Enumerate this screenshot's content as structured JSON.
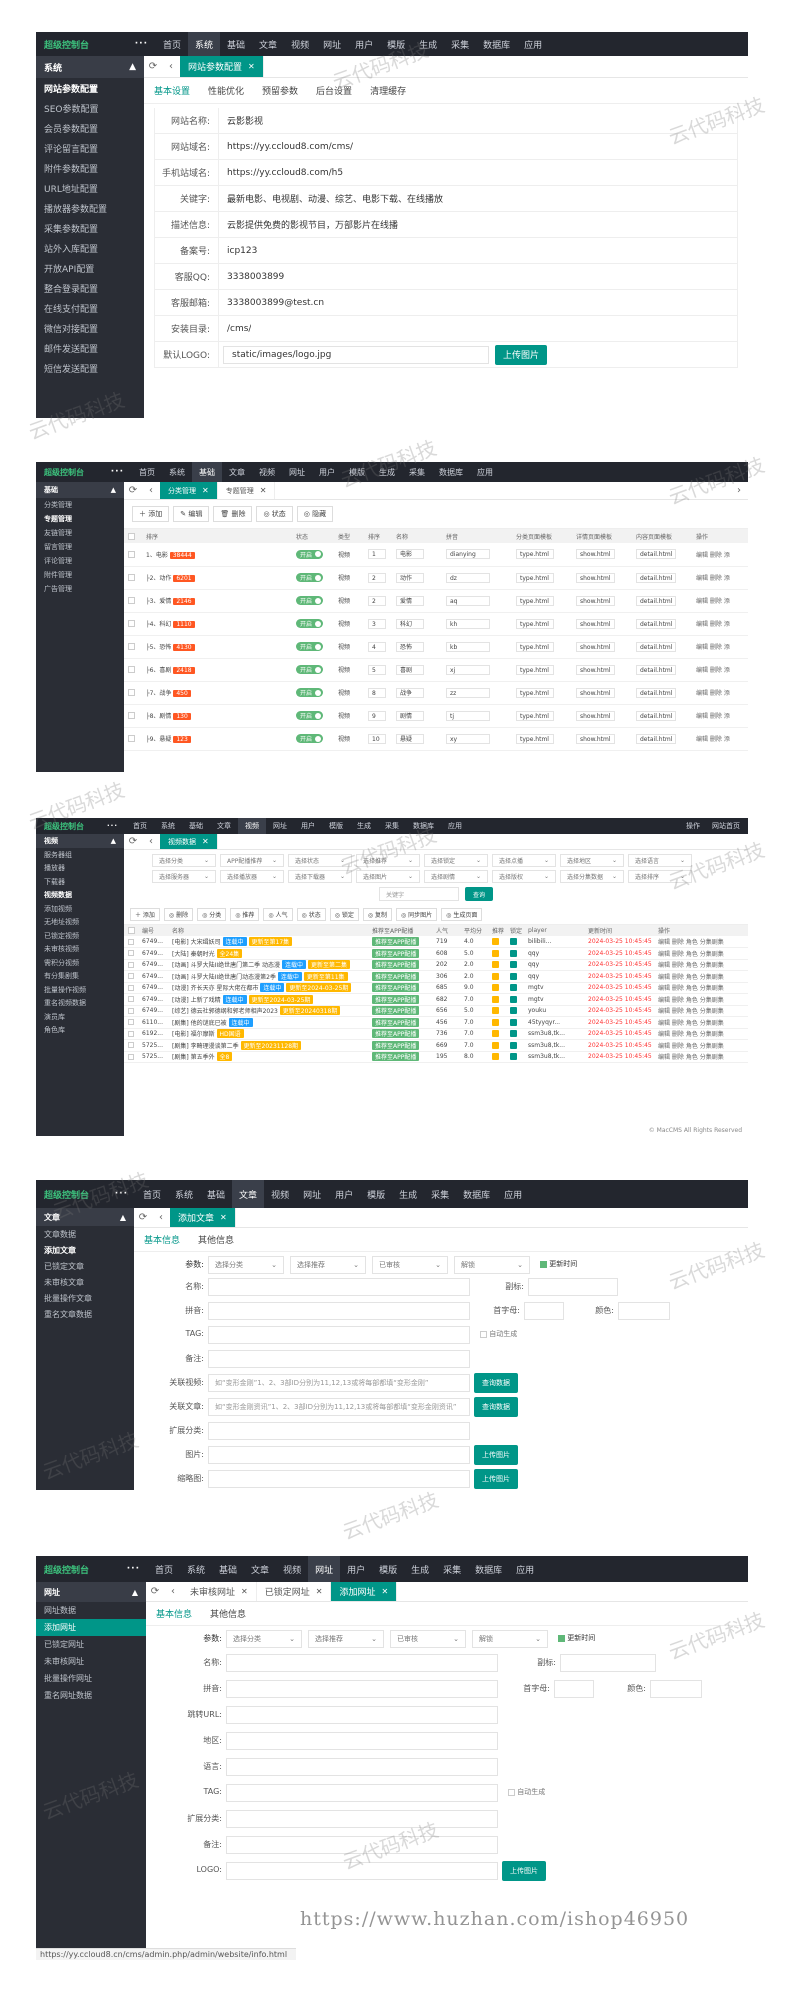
{
  "s1": {
    "brand": "超级控制台",
    "nav": [
      "首页",
      "系统",
      "基础",
      "文章",
      "视频",
      "网址",
      "用户",
      "模版",
      "生成",
      "采集",
      "数据库",
      "应用"
    ],
    "active_nav": 1,
    "side_head": "系统",
    "side_items": [
      "网站参数配置",
      "SEO参数配置",
      "会员参数配置",
      "评论留言配置",
      "附件参数配置",
      "URL地址配置",
      "播放器参数配置",
      "采集参数配置",
      "站外入库配置",
      "开放API配置",
      "整合登录配置",
      "在线支付配置",
      "微信对接配置",
      "邮件发送配置",
      "短信发送配置"
    ],
    "tab": "网站参数配置",
    "subtabs": [
      "基本设置",
      "性能优化",
      "预留参数",
      "后台设置",
      "清理缓存"
    ],
    "rows": [
      {
        "label": "网站名称:",
        "value": "云影影视"
      },
      {
        "label": "网站域名:",
        "value": "https://yy.ccloud8.com/cms/"
      },
      {
        "label": "手机站域名:",
        "value": "https://yy.ccloud8.com/h5"
      },
      {
        "label": "关键字:",
        "value": "最新电影、电视剧、动漫、综艺、电影下载、在线播放"
      },
      {
        "label": "描述信息:",
        "value": "云影提供免费的影视节目，万部影片在线播"
      },
      {
        "label": "备案号:",
        "value": "icp123"
      },
      {
        "label": "客服QQ:",
        "value": "3338003899"
      },
      {
        "label": "客服邮箱:",
        "value": "3338003899@test.cn"
      },
      {
        "label": "安装目录:",
        "value": "/cms/"
      },
      {
        "label": "默认LOGO:",
        "value": "static/images/logo.jpg"
      }
    ],
    "upload": "上传图片"
  },
  "s2": {
    "brand": "超级控制台",
    "nav": [
      "首页",
      "系统",
      "基础",
      "文章",
      "视频",
      "网址",
      "用户",
      "模版",
      "生成",
      "采集",
      "数据库",
      "应用"
    ],
    "active_nav": 2,
    "side_head": "基础",
    "side_items": [
      "分类管理",
      "专题管理",
      "友链管理",
      "留言管理",
      "评论管理",
      "附件管理",
      "广告管理"
    ],
    "tabs": [
      "分类管理",
      "专题管理"
    ],
    "toolbar": [
      "添加",
      "编辑",
      "删除",
      "状态",
      "隐藏"
    ],
    "headers": [
      "",
      "排序",
      "",
      "状态",
      "类型",
      "排序",
      "名称",
      "拼音",
      "分类页面模板",
      "详情页面模板",
      "内容页面模板",
      "操作"
    ],
    "rows": [
      {
        "name": "电影",
        "id": "38444",
        "order": "1",
        "cname": "电影",
        "py": "dianying"
      },
      {
        "name": "动作",
        "id": "6201",
        "order": "2",
        "cname": "动作",
        "py": "dz"
      },
      {
        "name": "爱情",
        "id": "2146",
        "order": "2",
        "cname": "爱情",
        "py": "aq"
      },
      {
        "name": "科幻",
        "id": "1110",
        "order": "3",
        "cname": "科幻",
        "py": "kh"
      },
      {
        "name": "恐怖",
        "id": "4130",
        "order": "4",
        "cname": "恐怖",
        "py": "kb"
      },
      {
        "name": "喜剧",
        "id": "2418",
        "order": "5",
        "cname": "喜剧",
        "py": "xj"
      },
      {
        "name": "战争",
        "id": "450",
        "order": "8",
        "cname": "战争",
        "py": "zz"
      },
      {
        "name": "剧情",
        "id": "130",
        "order": "9",
        "cname": "剧情",
        "py": "tj"
      },
      {
        "name": "悬疑",
        "id": "123",
        "order": "10",
        "cname": "悬疑",
        "py": "xy"
      }
    ],
    "status_on": "开启",
    "type_label": "视频",
    "tpl_type": "type.html",
    "tpl_show": "show.html",
    "tpl_detail": "detail.html",
    "ops": [
      "编辑",
      "删除",
      "添"
    ]
  },
  "s3": {
    "brand": "超级控制台",
    "nav": [
      "首页",
      "系统",
      "基础",
      "文章",
      "视频",
      "网址",
      "用户",
      "模版",
      "生成",
      "采集",
      "数据库",
      "应用"
    ],
    "active_nav": 4,
    "topright": [
      "操作",
      "网站首页"
    ],
    "side_head": "视频",
    "side_items": [
      "服务器组",
      "播放器",
      "下载器",
      "视频数据",
      "添加视频",
      "无地址视频",
      "已锁定视频",
      "未审核视频",
      "需积分视频",
      "有分集剧集",
      "批量操作视频",
      "重名视频数据",
      "演员库",
      "角色库"
    ],
    "tab": "视频数据",
    "filters1": [
      "选择分类",
      "APP配播推荐",
      "选择状态",
      "选择推荐",
      "选择锁定",
      "选择点播",
      "选择地区",
      "选择语言"
    ],
    "filters2": [
      "选择服务器",
      "选择播放器",
      "选择下载器",
      "选择图片",
      "选择剧情",
      "选择版权",
      "选择分集数据",
      "选择排序"
    ],
    "search_placeholder": "关键字",
    "query": "查询",
    "toolbar": [
      "添加",
      "删除",
      "分类",
      "推荐",
      "人气",
      "状态",
      "锁定",
      "复制",
      "同步图片",
      "生成页面"
    ],
    "headers": [
      "",
      "编号",
      "名称",
      "推荐至APP配播",
      "人气",
      "平均分",
      "推荐",
      "锁定",
      "player",
      "更新时间",
      "操作"
    ],
    "rows": [
      {
        "id": "6749...",
        "name": "[电影] 大宋缉妖司",
        "chips": [
          [
            "blue",
            "连载中"
          ],
          [
            "yellow",
            "更新至第17集"
          ]
        ],
        "hits": "719",
        "score": "4.0",
        "player": "bilibili...",
        "time": "2024-03-25 10:45:45"
      },
      {
        "id": "6749...",
        "name": "[大陆] 秦朝时光",
        "chips": [
          [
            "yellow",
            "全24集"
          ]
        ],
        "hits": "608",
        "score": "5.0",
        "player": "qqy",
        "time": "2024-03-25 10:45:45"
      },
      {
        "id": "6749...",
        "name": "[动画] 斗罗大陆II绝世唐门第二季 动态漫",
        "chips": [
          [
            "blue",
            "连载中"
          ],
          [
            "yellow",
            "更新至第二集"
          ]
        ],
        "hits": "202",
        "score": "2.0",
        "player": "qqy",
        "time": "2024-03-25 10:45:45"
      },
      {
        "id": "6749...",
        "name": "[动画] 斗罗大陆II绝世唐门动态漫第2季",
        "chips": [
          [
            "blue",
            "连载中"
          ],
          [
            "yellow",
            "更新至第11集"
          ]
        ],
        "hits": "306",
        "score": "2.0",
        "player": "qqy",
        "time": "2024-03-25 10:45:45"
      },
      {
        "id": "6749...",
        "name": "[动漫] 齐长天亦 星际大佬在都市",
        "chips": [
          [
            "blue",
            "连载中"
          ],
          [
            "yellow",
            "更新至2024-03-25期"
          ]
        ],
        "hits": "685",
        "score": "9.0",
        "player": "mgtv",
        "time": "2024-03-25 10:45:45"
      },
      {
        "id": "6749...",
        "name": "[动漫] 上新了戏精",
        "chips": [
          [
            "blue",
            "连载中"
          ],
          [
            "yellow",
            "更新至2024-03-25期"
          ]
        ],
        "hits": "682",
        "score": "7.0",
        "player": "mgtv",
        "time": "2024-03-25 10:45:45"
      },
      {
        "id": "6749...",
        "name": "[综艺] 德云社郭德纲和郭老师相声2023",
        "chips": [
          [
            "yellow",
            "更新至20240318期"
          ]
        ],
        "hits": "656",
        "score": "5.0",
        "player": "youku",
        "time": "2024-03-25 10:45:45"
      },
      {
        "id": "6110...",
        "name": "[剧集] 他的谜底已被",
        "chips": [
          [
            "blue",
            "连载中"
          ]
        ],
        "hits": "456",
        "score": "7.0",
        "player": "45tyyqyr...",
        "time": "2024-03-25 10:45:45"
      },
      {
        "id": "6192...",
        "name": "[电影] 福尔摩斯",
        "chips": [
          [
            "yellow",
            "HD国语"
          ]
        ],
        "hits": "736",
        "score": "7.0",
        "player": "ssm3u8,tk...",
        "time": "2024-03-25 10:45:45"
      },
      {
        "id": "5725...",
        "name": "[剧集] 李畸理漫谈第二季",
        "chips": [
          [
            "yellow",
            "更新至20231128期"
          ]
        ],
        "hits": "669",
        "score": "7.0",
        "player": "ssm3u8,tk...",
        "time": "2024-03-25 10:45:45"
      },
      {
        "id": "5725...",
        "name": "[剧集] 第五季外",
        "chips": [
          [
            "yellow",
            "全8"
          ]
        ],
        "hits": "195",
        "score": "8.0",
        "player": "ssm3u8,tk...",
        "time": "2024-03-25 10:45:45"
      }
    ],
    "app_rec": "推荐至APP配播",
    "ops": [
      "编辑",
      "删除",
      "角色",
      "分集剧集"
    ],
    "footer": "© MacCMS All Rights Reserved"
  },
  "s4": {
    "brand": "超级控制台",
    "nav": [
      "首页",
      "系统",
      "基础",
      "文章",
      "视频",
      "网址",
      "用户",
      "模版",
      "生成",
      "采集",
      "数据库",
      "应用"
    ],
    "active_nav": 3,
    "side_head": "文章",
    "side_items": [
      "文章数据",
      "添加文章",
      "已锁定文章",
      "未审核文章",
      "批量操作文章",
      "重名文章数据"
    ],
    "tab": "添加文章",
    "subtabs": [
      "基本信息",
      "其他信息"
    ],
    "params_label": "参数:",
    "params": [
      "选择分类",
      "选择推荐",
      "已审核",
      "解锁"
    ],
    "update_time": "更新时间",
    "fields": {
      "name": "名称:",
      "subtitle": "副标:",
      "pinyin": "拼音:",
      "initial": "首字母:",
      "color": "颜色:",
      "tag": "TAG:",
      "auto_gen": "自动生成",
      "remark": "备注:",
      "rel_video": "关联视频:",
      "rel_video_ph": "如“变形金刚”1、2、3部ID分别为11,12,13或将每部都填“变形金刚”",
      "rel_art": "关联文章:",
      "rel_art_ph": "如“变形金刚资讯”1、2、3部ID分别为11,12,13或将每部都填“变形金刚资讯”",
      "ext_class": "扩展分类:",
      "pic": "图片:",
      "thumb": "缩略图:"
    },
    "query": "查询数据",
    "upload": "上传图片"
  },
  "s5": {
    "brand": "超级控制台",
    "nav": [
      "首页",
      "系统",
      "基础",
      "文章",
      "视频",
      "网址",
      "用户",
      "模版",
      "生成",
      "采集",
      "数据库",
      "应用"
    ],
    "active_nav": 5,
    "side_head": "网址",
    "side_items": [
      "网址数据",
      "添加网址",
      "已锁定网址",
      "未审核网址",
      "批量操作网址",
      "重名网址数据"
    ],
    "tabs": [
      "未审核网址",
      "已锁定网址",
      "添加网址"
    ],
    "subtabs": [
      "基本信息",
      "其他信息"
    ],
    "params_label": "参数:",
    "params": [
      "选择分类",
      "选择推荐",
      "已审核",
      "解锁"
    ],
    "update_time": "更新时间",
    "fields": {
      "name": "名称:",
      "subtitle": "副标:",
      "pinyin": "拼音:",
      "initial": "首字母:",
      "color": "颜色:",
      "jump": "跳转URL:",
      "area": "地区:",
      "lang": "语言:",
      "tag": "TAG:",
      "auto_gen": "自动生成",
      "ext_class": "扩展分类:",
      "remark": "备注:",
      "logo": "LOGO:"
    },
    "upload": "上传图片",
    "status_url": "https://yy.ccloud8.cn/cms/admin.php/admin/website/info.html"
  },
  "watermark_text": "云代码科技",
  "url_watermark": "https://www.huzhan.com/ishop46950"
}
